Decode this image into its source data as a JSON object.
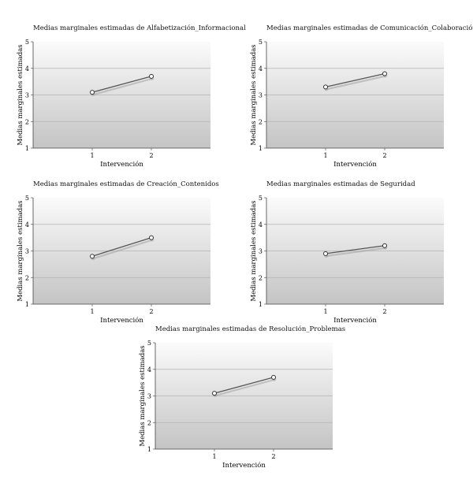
{
  "chart_data": [
    {
      "type": "line",
      "title": "Medias marginales estimadas de Alfabetización_Informacional",
      "xlabel": "Intervención",
      "ylabel": "Medias marginales estimadas",
      "categories": [
        "1",
        "2"
      ],
      "values": [
        3.1,
        3.7
      ],
      "ylim": [
        1,
        5
      ],
      "yticks": [
        "1",
        "2",
        "3",
        "4",
        "5"
      ],
      "grid": true
    },
    {
      "type": "line",
      "title": "Medias marginales estimadas de Comunicación_Colaboración",
      "xlabel": "Intervención",
      "ylabel": "Medias marginales estimadas",
      "categories": [
        "1",
        "2"
      ],
      "values": [
        3.3,
        3.8
      ],
      "ylim": [
        1,
        5
      ],
      "yticks": [
        "1",
        "2",
        "3",
        "4",
        "5"
      ],
      "grid": true
    },
    {
      "type": "line",
      "title": "Medias marginales estimadas de Creación_Contenidos",
      "xlabel": "Intervención",
      "ylabel": "Medias marginales estimadas",
      "categories": [
        "1",
        "2"
      ],
      "values": [
        2.8,
        3.5
      ],
      "ylim": [
        1,
        5
      ],
      "yticks": [
        "1",
        "2",
        "3",
        "4",
        "5"
      ],
      "grid": true
    },
    {
      "type": "line",
      "title": "Medias marginales estimadas de Seguridad",
      "xlabel": "Intervención",
      "ylabel": "Medias marginales estimadas",
      "categories": [
        "1",
        "2"
      ],
      "values": [
        2.9,
        3.2
      ],
      "ylim": [
        1,
        5
      ],
      "yticks": [
        "1",
        "2",
        "3",
        "4",
        "5"
      ],
      "grid": true
    },
    {
      "type": "line",
      "title": "Medias marginales estimadas de Resolución_Problemas",
      "xlabel": "Intervención",
      "ylabel": "Medias marginales estimadas",
      "categories": [
        "1",
        "2"
      ],
      "values": [
        3.1,
        3.7
      ],
      "ylim": [
        1,
        5
      ],
      "yticks": [
        "1",
        "2",
        "3",
        "4",
        "5"
      ],
      "grid": true
    }
  ]
}
